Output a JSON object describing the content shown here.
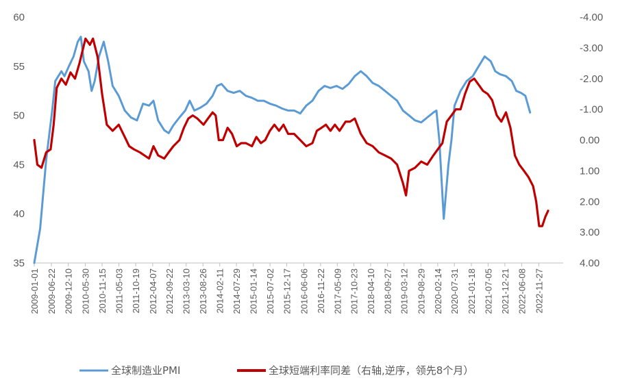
{
  "chart_data": {
    "type": "line",
    "title": "",
    "x_tick_labels": [
      "2009-01-01",
      "2009-06-22",
      "2009-12-10",
      "2010-05-30",
      "2010-11-15",
      "2011-05-03",
      "2011-10-19",
      "2012-04-07",
      "2012-09-22",
      "2013-03-10",
      "2013-08-26",
      "2014-02-11",
      "2014-07-29",
      "2015-01-14",
      "2015-07-02",
      "2015-12-17",
      "2016-06-06",
      "2016-11-22",
      "2017-05-09",
      "2017-10-23",
      "2018-04-10",
      "2018-09-27",
      "2019-03-12",
      "2019-08-29",
      "2020-02-14",
      "2020-07-31",
      "2021-01-18",
      "2021-07-05",
      "2021-12-21",
      "2022-06-08",
      "2022-11-27"
    ],
    "x_range": [
      "2009-01-01",
      "2023-07-31"
    ],
    "y_left": {
      "ticks": [
        "60",
        "55",
        "50",
        "45",
        "40",
        "35"
      ],
      "min": 35,
      "max": 60
    },
    "y_right": {
      "ticks": [
        "-4.00",
        "-3.00",
        "-2.00",
        "-1.00",
        "0.00",
        "1.00",
        "2.00",
        "3.00",
        "4.00"
      ],
      "min": -4,
      "max": 4,
      "inverted": true
    },
    "legend_position": "bottom",
    "grid": false,
    "series": [
      {
        "name": "全球制造业PMI",
        "color": "#5B9BD5",
        "axis": "left",
        "points": [
          [
            "2009-01-01",
            35.0
          ],
          [
            "2009-03-01",
            38.5
          ],
          [
            "2009-05-01",
            45.5
          ],
          [
            "2009-07-01",
            50.5
          ],
          [
            "2009-08-01",
            53.5
          ],
          [
            "2009-10-01",
            54.5
          ],
          [
            "2009-11-01",
            54.0
          ],
          [
            "2009-12-15",
            55.0
          ],
          [
            "2010-02-01",
            56.0
          ],
          [
            "2010-03-15",
            57.5
          ],
          [
            "2010-04-15",
            58.0
          ],
          [
            "2010-05-15",
            55.5
          ],
          [
            "2010-07-01",
            54.5
          ],
          [
            "2010-08-01",
            52.5
          ],
          [
            "2010-09-01",
            53.5
          ],
          [
            "2010-10-15",
            56.0
          ],
          [
            "2010-12-01",
            57.5
          ],
          [
            "2011-01-15",
            55.5
          ],
          [
            "2011-03-01",
            53.0
          ],
          [
            "2011-05-01",
            52.0
          ],
          [
            "2011-07-01",
            50.5
          ],
          [
            "2011-09-01",
            49.8
          ],
          [
            "2011-11-01",
            49.5
          ],
          [
            "2012-01-01",
            51.2
          ],
          [
            "2012-03-01",
            51.0
          ],
          [
            "2012-04-15",
            51.5
          ],
          [
            "2012-06-01",
            49.5
          ],
          [
            "2012-08-01",
            48.5
          ],
          [
            "2012-09-15",
            48.2
          ],
          [
            "2012-11-01",
            49.0
          ],
          [
            "2013-01-01",
            49.8
          ],
          [
            "2013-03-01",
            50.5
          ],
          [
            "2013-04-15",
            51.5
          ],
          [
            "2013-06-01",
            50.5
          ],
          [
            "2013-08-01",
            50.8
          ],
          [
            "2013-10-01",
            51.2
          ],
          [
            "2013-12-01",
            52.0
          ],
          [
            "2014-01-15",
            53.0
          ],
          [
            "2014-03-01",
            53.2
          ],
          [
            "2014-05-01",
            52.5
          ],
          [
            "2014-07-01",
            52.3
          ],
          [
            "2014-09-01",
            52.5
          ],
          [
            "2014-11-01",
            52.0
          ],
          [
            "2015-01-01",
            51.8
          ],
          [
            "2015-03-01",
            51.5
          ],
          [
            "2015-05-01",
            51.5
          ],
          [
            "2015-07-01",
            51.2
          ],
          [
            "2015-09-01",
            51.0
          ],
          [
            "2015-11-01",
            50.7
          ],
          [
            "2016-01-01",
            50.5
          ],
          [
            "2016-03-01",
            50.5
          ],
          [
            "2016-05-01",
            50.2
          ],
          [
            "2016-07-01",
            51.0
          ],
          [
            "2016-09-01",
            51.5
          ],
          [
            "2016-11-01",
            52.5
          ],
          [
            "2017-01-01",
            53.0
          ],
          [
            "2017-03-01",
            52.8
          ],
          [
            "2017-05-01",
            53.0
          ],
          [
            "2017-07-01",
            52.7
          ],
          [
            "2017-09-01",
            53.2
          ],
          [
            "2017-11-01",
            54.0
          ],
          [
            "2018-01-01",
            54.5
          ],
          [
            "2018-03-01",
            54.0
          ],
          [
            "2018-05-01",
            53.3
          ],
          [
            "2018-07-01",
            53.0
          ],
          [
            "2018-09-01",
            52.5
          ],
          [
            "2018-11-01",
            52.0
          ],
          [
            "2019-01-01",
            51.5
          ],
          [
            "2019-03-01",
            50.5
          ],
          [
            "2019-05-01",
            50.0
          ],
          [
            "2019-07-01",
            49.5
          ],
          [
            "2019-09-01",
            49.3
          ],
          [
            "2019-11-01",
            49.8
          ],
          [
            "2020-01-01",
            50.3
          ],
          [
            "2020-02-01",
            50.5
          ],
          [
            "2020-03-01",
            47.5
          ],
          [
            "2020-04-15",
            39.5
          ],
          [
            "2020-06-01",
            45.0
          ],
          [
            "2020-07-01",
            47.5
          ],
          [
            "2020-08-01",
            51.0
          ],
          [
            "2020-10-01",
            52.5
          ],
          [
            "2020-12-01",
            53.5
          ],
          [
            "2021-02-01",
            54.0
          ],
          [
            "2021-04-01",
            55.0
          ],
          [
            "2021-06-01",
            56.0
          ],
          [
            "2021-08-01",
            55.5
          ],
          [
            "2021-09-15",
            54.5
          ],
          [
            "2021-11-01",
            54.2
          ],
          [
            "2022-01-01",
            54.0
          ],
          [
            "2022-03-01",
            53.5
          ],
          [
            "2022-04-15",
            52.5
          ],
          [
            "2022-06-01",
            52.3
          ],
          [
            "2022-07-15",
            52.0
          ],
          [
            "2022-09-01",
            50.3
          ]
        ]
      },
      {
        "name": "全球短端利率同差（右轴,逆序，领先8个月）",
        "color": "#C00000",
        "axis": "right",
        "points": [
          [
            "2009-01-01",
            0.0
          ],
          [
            "2009-02-01",
            0.8
          ],
          [
            "2009-03-15",
            0.9
          ],
          [
            "2009-05-01",
            0.4
          ],
          [
            "2009-06-15",
            0.3
          ],
          [
            "2009-07-15",
            -0.5
          ],
          [
            "2009-08-15",
            -1.7
          ],
          [
            "2009-10-01",
            -2.0
          ],
          [
            "2009-11-15",
            -1.8
          ],
          [
            "2010-01-01",
            -2.2
          ],
          [
            "2010-02-15",
            -2.0
          ],
          [
            "2010-04-01",
            -2.5
          ],
          [
            "2010-06-01",
            -3.3
          ],
          [
            "2010-07-15",
            -3.1
          ],
          [
            "2010-08-15",
            -3.3
          ],
          [
            "2010-10-01",
            -2.7
          ],
          [
            "2010-11-15",
            -1.5
          ],
          [
            "2011-01-01",
            -0.5
          ],
          [
            "2011-03-01",
            -0.3
          ],
          [
            "2011-05-01",
            -0.5
          ],
          [
            "2011-07-01",
            -0.1
          ],
          [
            "2011-08-15",
            0.2
          ],
          [
            "2011-10-01",
            0.3
          ],
          [
            "2011-12-01",
            0.4
          ],
          [
            "2012-01-15",
            0.5
          ],
          [
            "2012-03-01",
            0.6
          ],
          [
            "2012-04-15",
            0.2
          ],
          [
            "2012-06-01",
            0.5
          ],
          [
            "2012-08-01",
            0.6
          ],
          [
            "2012-09-15",
            0.4
          ],
          [
            "2012-11-01",
            0.2
          ],
          [
            "2013-01-01",
            0.0
          ],
          [
            "2013-02-15",
            -0.4
          ],
          [
            "2013-04-01",
            -0.7
          ],
          [
            "2013-05-15",
            -0.8
          ],
          [
            "2013-07-01",
            -0.7
          ],
          [
            "2013-09-01",
            -0.5
          ],
          [
            "2013-10-15",
            -0.7
          ],
          [
            "2013-12-01",
            -0.9
          ],
          [
            "2014-01-01",
            -0.8
          ],
          [
            "2014-02-01",
            0.0
          ],
          [
            "2014-03-15",
            0.0
          ],
          [
            "2014-05-01",
            -0.4
          ],
          [
            "2014-06-15",
            -0.2
          ],
          [
            "2014-08-01",
            0.2
          ],
          [
            "2014-09-15",
            0.1
          ],
          [
            "2014-11-01",
            0.1
          ],
          [
            "2015-01-01",
            0.2
          ],
          [
            "2015-02-15",
            -0.1
          ],
          [
            "2015-04-01",
            0.1
          ],
          [
            "2015-05-15",
            0.0
          ],
          [
            "2015-07-01",
            -0.3
          ],
          [
            "2015-08-15",
            -0.5
          ],
          [
            "2015-10-01",
            -0.3
          ],
          [
            "2015-11-15",
            -0.5
          ],
          [
            "2016-01-01",
            -0.2
          ],
          [
            "2016-03-01",
            -0.2
          ],
          [
            "2016-05-01",
            0.0
          ],
          [
            "2016-07-01",
            0.2
          ],
          [
            "2016-09-01",
            0.1
          ],
          [
            "2016-10-15",
            -0.3
          ],
          [
            "2016-12-01",
            -0.4
          ],
          [
            "2017-01-15",
            -0.5
          ],
          [
            "2017-03-01",
            -0.3
          ],
          [
            "2017-04-15",
            -0.5
          ],
          [
            "2017-06-01",
            -0.3
          ],
          [
            "2017-08-01",
            -0.6
          ],
          [
            "2017-09-15",
            -0.6
          ],
          [
            "2017-11-01",
            -0.7
          ],
          [
            "2018-01-01",
            -0.2
          ],
          [
            "2018-03-01",
            0.1
          ],
          [
            "2018-05-01",
            0.2
          ],
          [
            "2018-07-01",
            0.4
          ],
          [
            "2018-09-01",
            0.5
          ],
          [
            "2018-11-01",
            0.6
          ],
          [
            "2019-01-01",
            0.8
          ],
          [
            "2019-03-01",
            1.4
          ],
          [
            "2019-04-01",
            1.8
          ],
          [
            "2019-05-01",
            1.0
          ],
          [
            "2019-07-01",
            0.9
          ],
          [
            "2019-09-01",
            0.7
          ],
          [
            "2019-11-01",
            0.8
          ],
          [
            "2020-01-01",
            0.5
          ],
          [
            "2020-02-15",
            0.3
          ],
          [
            "2020-04-01",
            0.1
          ],
          [
            "2020-05-15",
            -0.6
          ],
          [
            "2020-07-01",
            -0.8
          ],
          [
            "2020-08-15",
            -1.0
          ],
          [
            "2020-10-01",
            -1.0
          ],
          [
            "2020-11-15",
            -1.5
          ],
          [
            "2021-01-01",
            -1.9
          ],
          [
            "2021-02-15",
            -2.0
          ],
          [
            "2021-04-01",
            -1.8
          ],
          [
            "2021-05-15",
            -1.6
          ],
          [
            "2021-07-01",
            -1.5
          ],
          [
            "2021-08-15",
            -1.3
          ],
          [
            "2021-10-01",
            -0.8
          ],
          [
            "2021-11-15",
            -0.6
          ],
          [
            "2022-01-01",
            -0.9
          ],
          [
            "2022-02-15",
            -0.4
          ],
          [
            "2022-04-01",
            0.5
          ],
          [
            "2022-05-15",
            0.8
          ],
          [
            "2022-07-01",
            1.0
          ],
          [
            "2022-08-15",
            1.2
          ],
          [
            "2022-10-01",
            1.5
          ],
          [
            "2022-11-01",
            2.0
          ],
          [
            "2022-12-01",
            2.8
          ],
          [
            "2023-01-01",
            2.8
          ],
          [
            "2023-02-01",
            2.5
          ],
          [
            "2023-03-01",
            2.3
          ]
        ]
      }
    ]
  }
}
